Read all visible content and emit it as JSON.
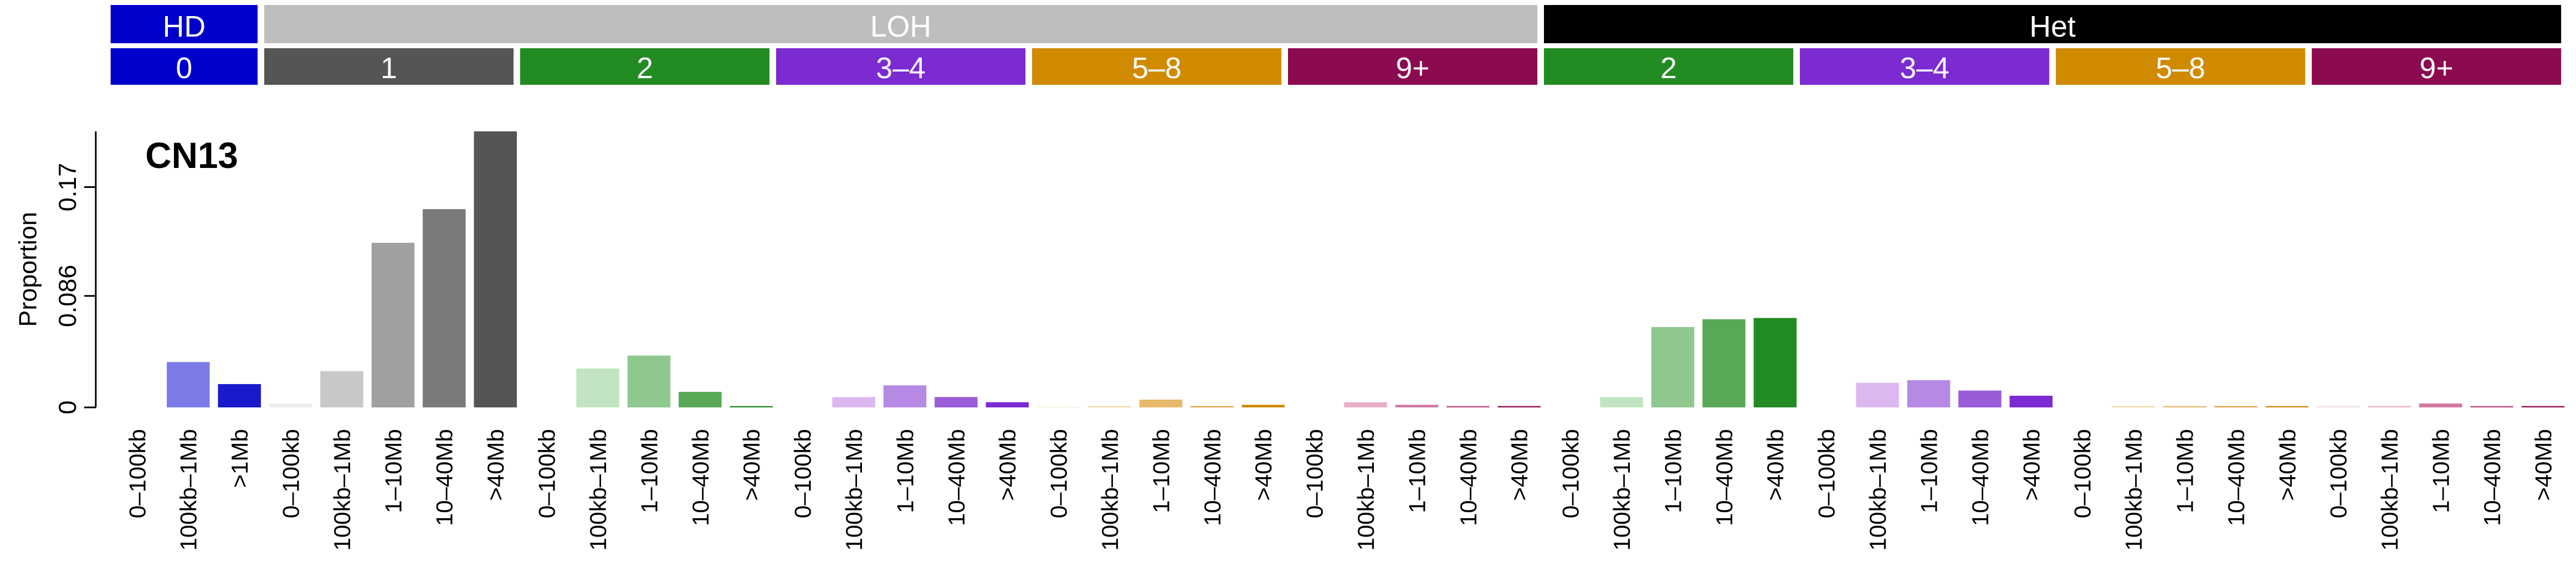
{
  "chart_data": {
    "type": "bar",
    "title": "CN13",
    "ylabel": "Proportion",
    "ylim": [
      0,
      0.213
    ],
    "yticks": [
      0,
      0.086,
      0.17
    ],
    "categories": [
      "0–100kb",
      "100kb–1Mb",
      ">1Mb",
      "0–100kb",
      "100kb–1Mb",
      "1–10Mb",
      "10–40Mb",
      ">40Mb",
      "0–100kb",
      "100kb–1Mb",
      "1–10Mb",
      "10–40Mb",
      ">40Mb",
      "0–100kb",
      "100kb–1Mb",
      "1–10Mb",
      "10–40Mb",
      ">40Mb",
      "0–100kb",
      "100kb–1Mb",
      "1–10Mb",
      "10–40Mb",
      ">40Mb",
      "0–100kb",
      "100kb–1Mb",
      "1–10Mb",
      "10–40Mb",
      ">40Mb",
      "0–100kb",
      "100kb–1Mb",
      "1–10Mb",
      "10–40Mb",
      ">40Mb",
      "0–100kb",
      "100kb–1Mb",
      "1–10Mb",
      "10–40Mb",
      ">40Mb",
      "0–100kb",
      "100kb–1Mb",
      "1–10Mb",
      "10–40Mb",
      ">40Mb",
      "0–100kb",
      "100kb–1Mb",
      "1–10Mb",
      "10–40Mb",
      ">40Mb"
    ],
    "values": [
      0,
      0.035,
      0.018,
      0.003,
      0.028,
      0.127,
      0.153,
      0.213,
      0,
      0.03,
      0.04,
      0.012,
      0.001,
      0,
      0.008,
      0.017,
      0.008,
      0.004,
      0.0005,
      0.001,
      0.006,
      0.001,
      0.002,
      0,
      0.004,
      0.002,
      0.001,
      0.001,
      0,
      0.008,
      0.062,
      0.068,
      0.069,
      0,
      0.019,
      0.021,
      0.013,
      0.009,
      0,
      0.001,
      0.001,
      0.001,
      0.001,
      0.001,
      0.001,
      0.003,
      0.001,
      0.001
    ],
    "colors": [
      "#b0b0f0",
      "#7b7be8",
      "#1a1acc",
      "#eeeeee",
      "#c8c8c8",
      "#a0a0a0",
      "#7a7a7a",
      "#555555",
      "#e0f0e0",
      "#c2e4c2",
      "#8fc88f",
      "#58a858",
      "#228b22",
      "#eedcf6",
      "#dcb8f0",
      "#b68ae4",
      "#9a5cd8",
      "#7b2bd1",
      "#f6e8cc",
      "#f0d8a8",
      "#e6b86a",
      "#dca040",
      "#d08a00",
      "#f2dce6",
      "#e8b0c8",
      "#d27aa0",
      "#b84a7c",
      "#8b0a50",
      "#e0f0e0",
      "#c2e4c2",
      "#8fc88f",
      "#58a858",
      "#228b22",
      "#eedcf6",
      "#dcb8f0",
      "#b68ae4",
      "#9a5cd8",
      "#7b2bd1",
      "#f6e8cc",
      "#f0d8a8",
      "#e6b86a",
      "#dca040",
      "#d08a00",
      "#f2dce6",
      "#e8b0c8",
      "#d27aa0",
      "#b84a7c",
      "#8b0a50"
    ],
    "header": [
      {
        "label": "HD",
        "color": "#0000cc",
        "sections": [
          {
            "label": "0",
            "color": "#0000cc"
          }
        ]
      },
      {
        "label": "LOH",
        "color": "#bebebe",
        "sections": [
          {
            "label": "1",
            "color": "#555555"
          },
          {
            "label": "2",
            "color": "#228b22"
          },
          {
            "label": "3–4",
            "color": "#7b2bd1"
          },
          {
            "label": "5–8",
            "color": "#d08a00"
          },
          {
            "label": "9+",
            "color": "#8b0a50"
          }
        ]
      },
      {
        "label": "Het",
        "color": "#000000",
        "sections": [
          {
            "label": "2",
            "color": "#228b22"
          },
          {
            "label": "3–4",
            "color": "#7b2bd1"
          },
          {
            "label": "5–8",
            "color": "#d08a00"
          },
          {
            "label": "9+",
            "color": "#8b0a50"
          }
        ]
      }
    ]
  }
}
